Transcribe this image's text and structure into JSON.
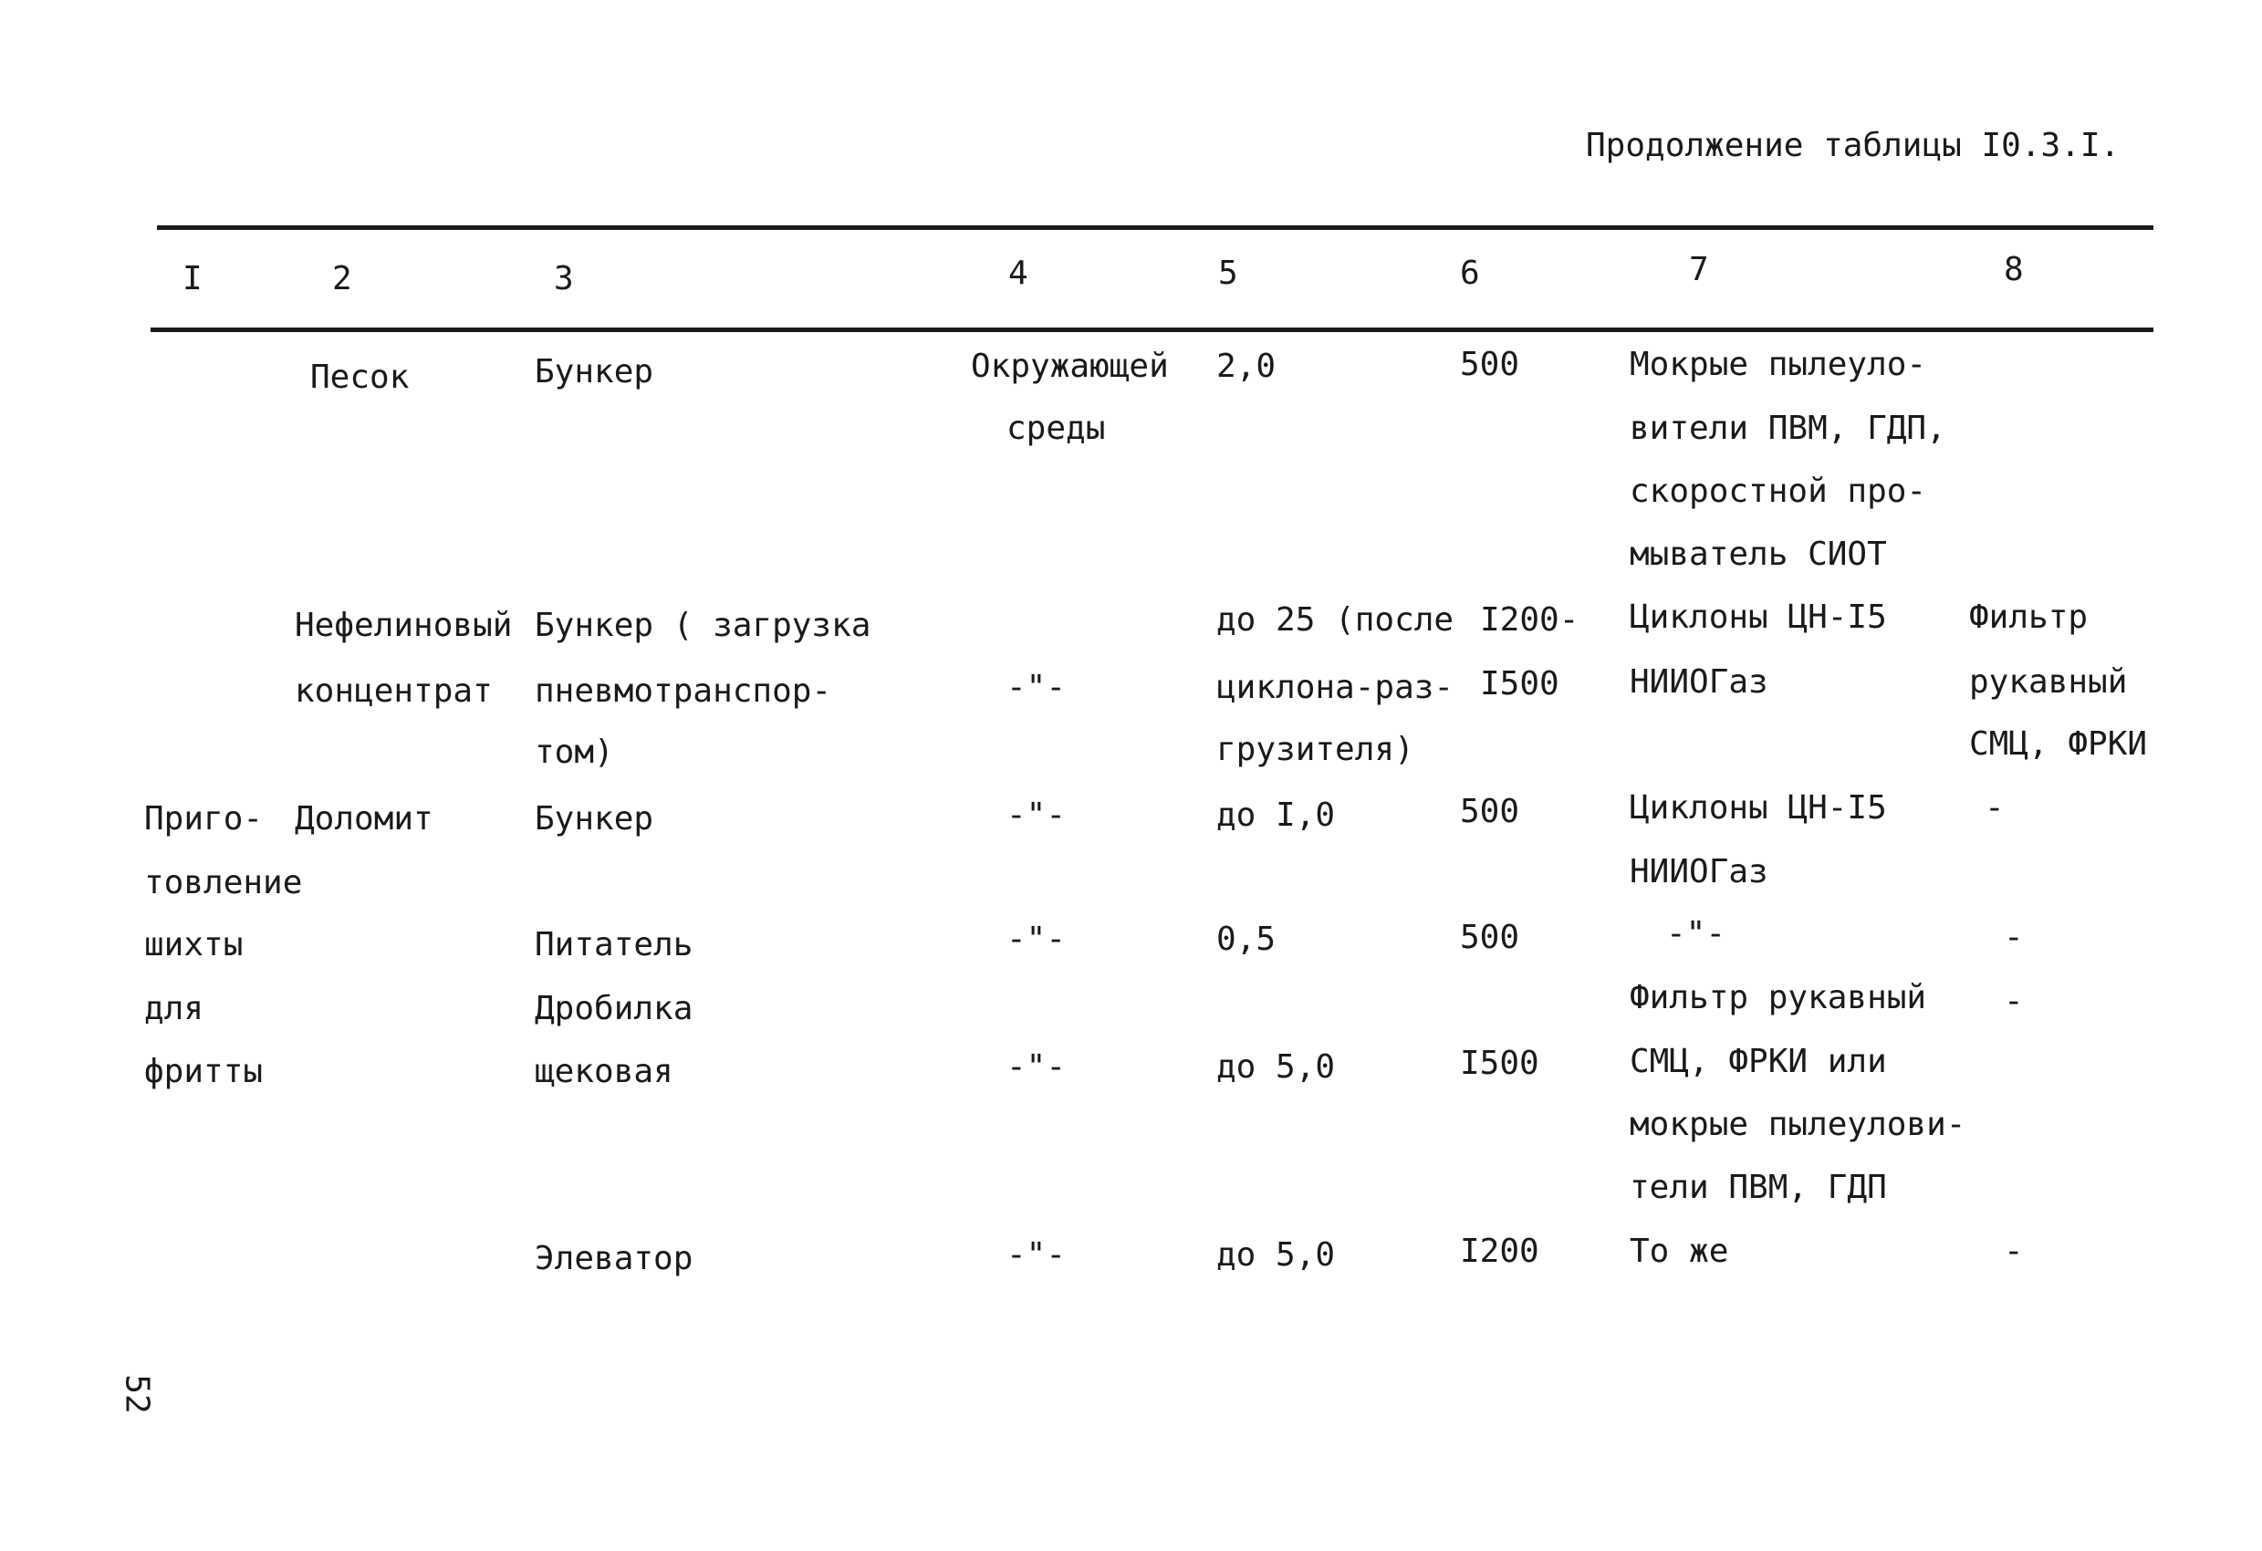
{
  "caption": "Продолжение таблицы I0.3.I.",
  "headers": [
    "I",
    "2",
    "3",
    "4",
    "5",
    "6",
    "7",
    "8"
  ],
  "col1": {
    "lines": [
      "Приго-",
      "товление",
      "шихты",
      "для",
      "фритты"
    ]
  },
  "rows": [
    {
      "material": [
        "Песок"
      ],
      "equipment": [
        "Бункер"
      ],
      "environment": [
        "Окружающей",
        "среды"
      ],
      "value5": [
        "2,0"
      ],
      "value6": [
        "500"
      ],
      "cleaning7": [
        "Мокрые пылеуло-",
        "вители ПВМ, ГДП,",
        "скоростной про-",
        "мыватель СИОТ"
      ],
      "cleaning8": []
    },
    {
      "material": [
        "Нефелиновый",
        "концентрат"
      ],
      "equipment": [
        "Бункер ( загрузка",
        "пневмотранспор-",
        "том)"
      ],
      "environment": [
        "-\"-"
      ],
      "value5": [
        "до 25 (после",
        "циклона-раз-",
        "грузителя)"
      ],
      "value6": [
        "I200-",
        "I500"
      ],
      "cleaning7": [
        "Циклоны ЦН-I5",
        "НИИОГаз"
      ],
      "cleaning8": [
        "Фильтр",
        "рукавный",
        "СМЦ, ФРКИ"
      ]
    },
    {
      "material": [
        "Доломит"
      ],
      "equipment": [
        "Бункер"
      ],
      "environment": [
        "-\"-"
      ],
      "value5": [
        "до I,0"
      ],
      "value6": [
        "500"
      ],
      "cleaning7": [
        "Циклоны ЦН-I5",
        "НИИОГаз"
      ],
      "cleaning8": [
        "-"
      ]
    },
    {
      "material": [],
      "equipment": [
        "Питатель"
      ],
      "environment": [
        "-\"-"
      ],
      "value5": [
        "0,5"
      ],
      "value6": [
        "500"
      ],
      "cleaning7": [
        "-\"-"
      ],
      "cleaning8": [
        "-"
      ]
    },
    {
      "material": [],
      "equipment": [
        "Дробилка",
        "щековая"
      ],
      "environment": [
        "-\"-"
      ],
      "value5": [
        "до 5,0"
      ],
      "value6": [
        "I500"
      ],
      "cleaning7": [
        "Фильтр рукавный",
        "СМЦ, ФРКИ или",
        "мокрые пылеулови-",
        "тели ПВМ, ГДП"
      ],
      "cleaning8": [
        "-"
      ]
    },
    {
      "material": [],
      "equipment": [
        "Элеватор"
      ],
      "environment": [
        "-\"-"
      ],
      "value5": [
        "до 5,0"
      ],
      "value6": [
        "I200"
      ],
      "cleaning7": [
        "То же"
      ],
      "cleaning8": [
        "-"
      ]
    }
  ],
  "page_number": "52"
}
